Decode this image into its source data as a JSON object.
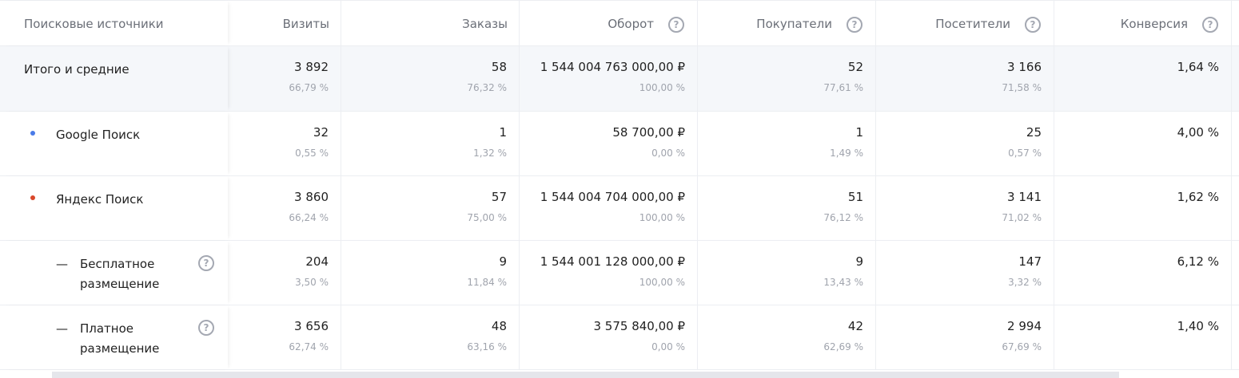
{
  "columns": [
    {
      "label": "Поисковые источники",
      "help": false
    },
    {
      "label": "Визиты",
      "help": false
    },
    {
      "label": "Заказы",
      "help": false
    },
    {
      "label": "Оборот",
      "help": true
    },
    {
      "label": "Покупатели",
      "help": true
    },
    {
      "label": "Посетители",
      "help": true
    },
    {
      "label": "Конверсия",
      "help": true
    }
  ],
  "rows": [
    {
      "label": "Итого и средние",
      "type": "total",
      "values": [
        "3 892",
        "58",
        "1 544 004 763 000,00 ₽",
        "52",
        "3 166",
        "1,64 %"
      ],
      "percents": [
        "66,79 %",
        "76,32 %",
        "100,00 %",
        "77,61 %",
        "71,58 %",
        ""
      ]
    },
    {
      "label": "Google Поиск",
      "type": "source",
      "dot_color": "#4a7be8",
      "values": [
        "32",
        "1",
        "58 700,00 ₽",
        "1",
        "25",
        "4,00 %"
      ],
      "percents": [
        "0,55 %",
        "1,32 %",
        "0,00 %",
        "1,49 %",
        "0,57 %",
        ""
      ]
    },
    {
      "label": "Яндекс Поиск",
      "type": "source",
      "dot_color": "#d9472b",
      "values": [
        "3 860",
        "57",
        "1 544 004 704 000,00 ₽",
        "51",
        "3 141",
        "1,62 %"
      ],
      "percents": [
        "66,24 %",
        "75,00 %",
        "100,00 %",
        "76,12 %",
        "71,02 %",
        ""
      ]
    },
    {
      "label": "Бесплатное размещение",
      "type": "sub",
      "help": true,
      "values": [
        "204",
        "9",
        "1 544 001 128 000,00 ₽",
        "9",
        "147",
        "6,12 %"
      ],
      "percents": [
        "3,50 %",
        "11,84 %",
        "100,00 %",
        "13,43 %",
        "3,32 %",
        ""
      ]
    },
    {
      "label": "Платное размещение",
      "type": "sub",
      "help": true,
      "values": [
        "3 656",
        "48",
        "3 575 840,00 ₽",
        "42",
        "2 994",
        "1,40 %"
      ],
      "percents": [
        "62,74 %",
        "63,16 %",
        "0,00 %",
        "62,69 %",
        "67,69 %",
        ""
      ]
    }
  ],
  "icons": {
    "help": "question-circle-icon",
    "dash": "—"
  }
}
